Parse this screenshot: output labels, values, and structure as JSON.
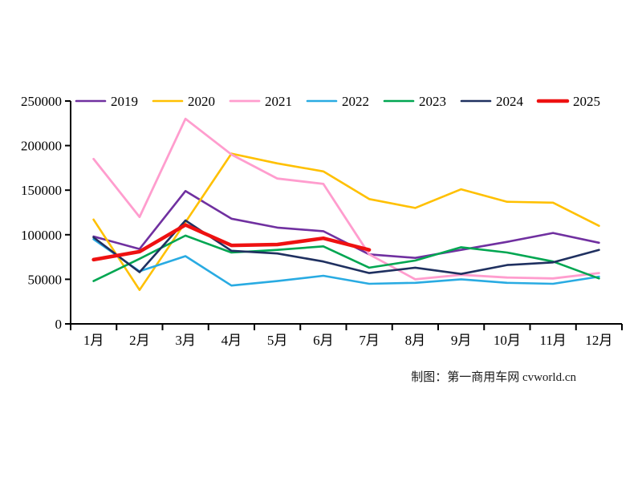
{
  "caption": "制图：第一商用车网 cvworld.cn",
  "axis_color": "#000000",
  "background_color": "#ffffff",
  "chart_data": {
    "type": "line",
    "title": "",
    "xlabel": "",
    "ylabel": "",
    "categories": [
      "1月",
      "2月",
      "3月",
      "4月",
      "5月",
      "6月",
      "7月",
      "8月",
      "9月",
      "10月",
      "11月",
      "12月"
    ],
    "ylim": [
      0,
      250000
    ],
    "ytick_step": 50000,
    "ytick_labels": [
      "0",
      "50000",
      "100000",
      "150000",
      "200000",
      "250000"
    ],
    "grid": false,
    "legend_position": "top",
    "series": [
      {
        "name": "2019",
        "color": "#7030A0",
        "line_width": 2.6,
        "values": [
          98000,
          84000,
          149000,
          118000,
          108000,
          104000,
          78000,
          74000,
          83000,
          92000,
          102000,
          91000
        ]
      },
      {
        "name": "2020",
        "color": "#FFC000",
        "line_width": 2.6,
        "values": [
          117000,
          38000,
          114000,
          191000,
          180000,
          171000,
          140000,
          130000,
          151000,
          137000,
          136000,
          110000
        ]
      },
      {
        "name": "2021",
        "color": "#FF9DCE",
        "line_width": 2.8,
        "values": [
          185000,
          120000,
          230000,
          190000,
          163000,
          157000,
          78000,
          50000,
          55000,
          52000,
          51000,
          57000
        ]
      },
      {
        "name": "2022",
        "color": "#29ABE2",
        "line_width": 2.6,
        "values": [
          95000,
          59000,
          76000,
          43000,
          48000,
          54000,
          45000,
          46000,
          50000,
          46000,
          45000,
          53000
        ]
      },
      {
        "name": "2023",
        "color": "#00A651",
        "line_width": 2.6,
        "values": [
          48000,
          73000,
          99000,
          80000,
          83000,
          87000,
          63000,
          71000,
          86000,
          80000,
          70000,
          51000
        ]
      },
      {
        "name": "2024",
        "color": "#1F3060",
        "line_width": 2.6,
        "values": [
          97000,
          58000,
          116000,
          82000,
          79000,
          70000,
          57000,
          63000,
          56000,
          66000,
          69000,
          83000
        ]
      },
      {
        "name": "2025",
        "color": "#EE1111",
        "line_width": 4.5,
        "values": [
          72000,
          81000,
          111000,
          88000,
          89000,
          96000,
          83000
        ]
      }
    ]
  }
}
